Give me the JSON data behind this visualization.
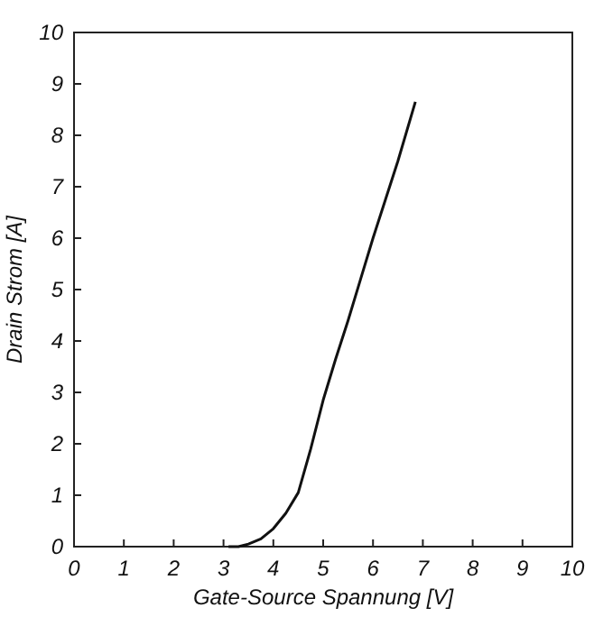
{
  "chart_data": {
    "type": "line",
    "xlabel": "Gate-Source Spannung [V]",
    "ylabel": "Drain Strom [A]",
    "x": [
      3.1,
      3.3,
      3.5,
      3.75,
      4,
      4.25,
      4.5,
      4.75,
      5,
      5.25,
      5.5,
      5.75,
      6,
      6.25,
      6.5,
      6.85
    ],
    "series": [
      {
        "color": "#111111",
        "values": [
          0,
          0,
          0.05,
          0.15,
          0.35,
          0.65,
          1.05,
          1.9,
          2.85,
          3.65,
          4.4,
          5.2,
          6.0,
          6.75,
          7.5,
          8.65
        ]
      }
    ],
    "xlim": [
      0,
      10
    ],
    "ylim": [
      0,
      10
    ],
    "xticks": [
      0,
      1,
      2,
      3,
      4,
      5,
      6,
      7,
      8,
      9,
      10
    ],
    "yticks": [
      0,
      1,
      2,
      3,
      4,
      5,
      6,
      7,
      8,
      9,
      10
    ],
    "grid": false,
    "marker": "none",
    "line_style": "solid"
  }
}
